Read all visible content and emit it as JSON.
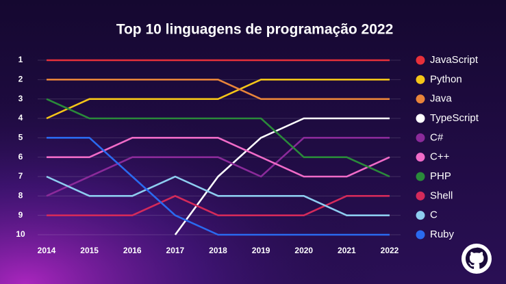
{
  "chart_data": {
    "type": "bump",
    "title": "Top 10 linguagens de programação 2022",
    "categories": [
      "2014",
      "2015",
      "2016",
      "2017",
      "2018",
      "2019",
      "2020",
      "2021",
      "2022"
    ],
    "ylim": [
      1,
      10
    ],
    "y_inverted": true,
    "yticks": [
      1,
      2,
      3,
      4,
      5,
      6,
      7,
      8,
      9,
      10
    ],
    "grid": true,
    "legend": "right",
    "series": [
      {
        "name": "JavaScript",
        "color": "#e8303a",
        "values": [
          1,
          1,
          1,
          1,
          1,
          1,
          1,
          1,
          1
        ]
      },
      {
        "name": "Python",
        "color": "#f5c518",
        "values": [
          4,
          3,
          3,
          3,
          3,
          2,
          2,
          2,
          2
        ]
      },
      {
        "name": "Java",
        "color": "#e8843a",
        "values": [
          2,
          2,
          2,
          2,
          2,
          3,
          3,
          3,
          3
        ]
      },
      {
        "name": "TypeScript",
        "color": "#ffffff",
        "values": [
          null,
          null,
          null,
          10,
          7,
          5,
          4,
          4,
          4
        ]
      },
      {
        "name": "C#",
        "color": "#8b2a9a",
        "values": [
          8,
          7,
          6,
          6,
          6,
          7,
          5,
          5,
          5
        ]
      },
      {
        "name": "C++",
        "color": "#f06bc8",
        "values": [
          6,
          6,
          5,
          5,
          5,
          6,
          7,
          7,
          6
        ]
      },
      {
        "name": "PHP",
        "color": "#2a8a3a",
        "values": [
          3,
          4,
          4,
          4,
          4,
          4,
          6,
          6,
          7
        ]
      },
      {
        "name": "Shell",
        "color": "#d42a5a",
        "values": [
          9,
          9,
          9,
          8,
          9,
          9,
          9,
          8,
          8
        ]
      },
      {
        "name": "C",
        "color": "#8ecdf0",
        "values": [
          7,
          8,
          8,
          7,
          8,
          8,
          8,
          9,
          9
        ]
      },
      {
        "name": "Ruby",
        "color": "#2a6af0",
        "values": [
          5,
          5,
          7,
          9,
          10,
          10,
          10,
          10,
          10
        ]
      }
    ]
  }
}
